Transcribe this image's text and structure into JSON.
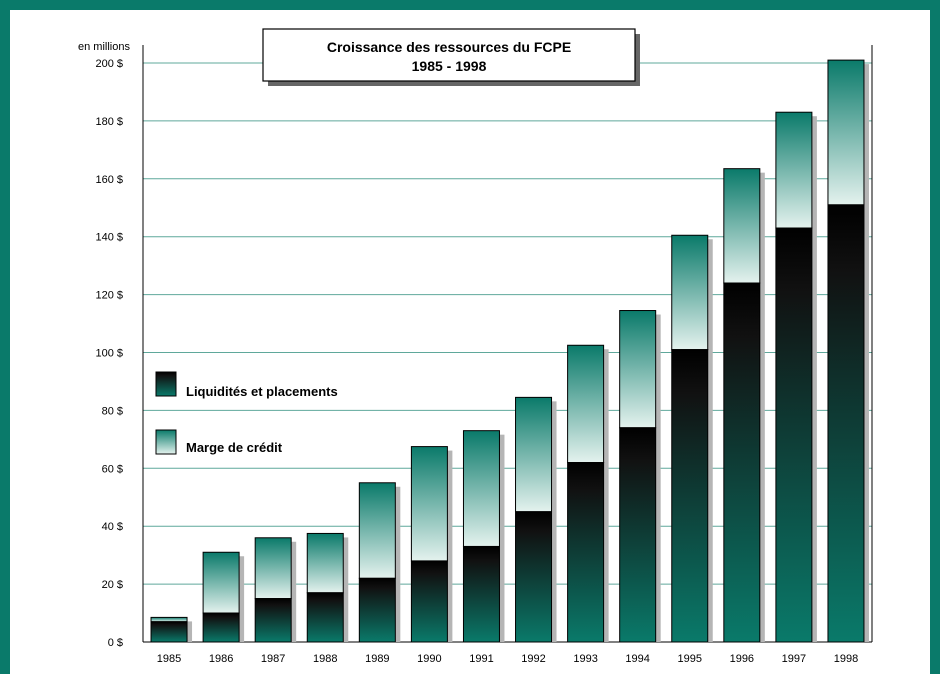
{
  "chart_data": {
    "type": "bar",
    "stacked": true,
    "title": "Croissance des ressources du FCPE",
    "subtitle": "1985 - 1998",
    "ylabel": "en millions",
    "ylim": [
      0,
      200
    ],
    "yticks": [
      "0 $",
      "20 $",
      "40 $",
      "60 $",
      "80 $",
      "100 $",
      "120 $",
      "140 $",
      "160 $",
      "180 $",
      "200 $"
    ],
    "categories": [
      "1985",
      "1986",
      "1987",
      "1988",
      "1989",
      "1990",
      "1991",
      "1992",
      "1993",
      "1994",
      "1995",
      "1996",
      "1997",
      "1998"
    ],
    "series": [
      {
        "name": "Liquidités et placements",
        "values": [
          7,
          10,
          15,
          17,
          22,
          28,
          33,
          45,
          62,
          74,
          101,
          124,
          143,
          151
        ]
      },
      {
        "name": "Marge de crédit",
        "values": [
          1.5,
          21,
          21,
          20.5,
          33,
          39.5,
          40,
          39.5,
          40.5,
          40.5,
          39.5,
          39.5,
          40,
          50
        ]
      }
    ],
    "grid": true,
    "legend_position": "left-middle",
    "colors": {
      "frame": "#0a7a6a",
      "teal": "#0a7a6a",
      "dark": "#000000",
      "light": "#e4f2ee",
      "grid": "#5fa89b"
    }
  }
}
